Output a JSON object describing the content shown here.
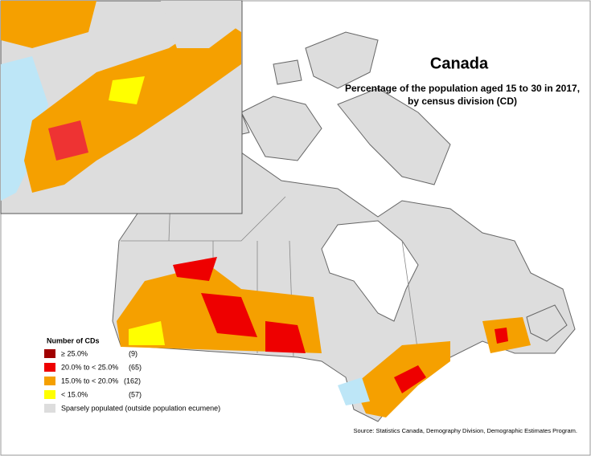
{
  "title": "Canada",
  "subtitle": [
    "Percentage of the population aged 15 to 30 in 2017,",
    "by census division (CD)"
  ],
  "legend": {
    "title": "Number of CDs",
    "items": [
      {
        "label": "≥ 25.0%",
        "count": "(9)"
      },
      {
        "label": "20.0% to < 25.0%",
        "count": "(65)"
      },
      {
        "label": "15.0% to < 20.0%",
        "count": "(162)"
      },
      {
        "label": "< 15.0%",
        "count": "(57)"
      },
      {
        "label": "Sparsely populated (outside population ecumene)"
      }
    ]
  },
  "source": "Source: Statistics Canada, Demography Division, Demographic Estimates Program."
}
